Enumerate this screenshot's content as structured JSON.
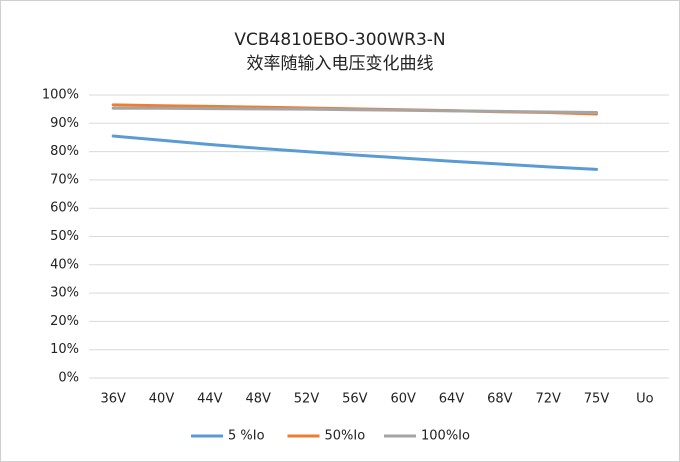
{
  "chart_data": {
    "type": "line",
    "title": "VCB4810EBO-300WR3-N",
    "subtitle": "效率随输入电压变化曲线",
    "categories": [
      "36V",
      "40V",
      "44V",
      "48V",
      "52V",
      "56V",
      "60V",
      "64V",
      "68V",
      "72V",
      "75V",
      "Uo"
    ],
    "series": [
      {
        "name": "5 %Io",
        "color": "#5b9bd5",
        "values": [
          85.5,
          84,
          82.5,
          81.2,
          80,
          78.8,
          77.7,
          76.6,
          75.6,
          74.6,
          73.7,
          null
        ]
      },
      {
        "name": "50%Io",
        "color": "#ed7d31",
        "values": [
          96.5,
          96.2,
          96,
          95.7,
          95.4,
          95.1,
          94.8,
          94.5,
          94.1,
          93.8,
          93.3,
          null
        ]
      },
      {
        "name": "100%Io",
        "color": "#a5a5a5",
        "values": [
          95.3,
          95.3,
          95.2,
          95.1,
          95,
          94.8,
          94.6,
          94.4,
          94.2,
          94,
          93.8,
          null
        ]
      }
    ],
    "ylim": [
      0,
      100
    ],
    "yticks": [
      {
        "value": 0,
        "label": "0%"
      },
      {
        "value": 10,
        "label": "10%"
      },
      {
        "value": 20,
        "label": "20%"
      },
      {
        "value": 30,
        "label": "30%"
      },
      {
        "value": 40,
        "label": "40%"
      },
      {
        "value": 50,
        "label": "50%"
      },
      {
        "value": 60,
        "label": "60%"
      },
      {
        "value": 70,
        "label": "70%"
      },
      {
        "value": 80,
        "label": "80%"
      },
      {
        "value": 90,
        "label": "90%"
      },
      {
        "value": 100,
        "label": "100%"
      }
    ],
    "grid": true,
    "legend": "bottom"
  }
}
